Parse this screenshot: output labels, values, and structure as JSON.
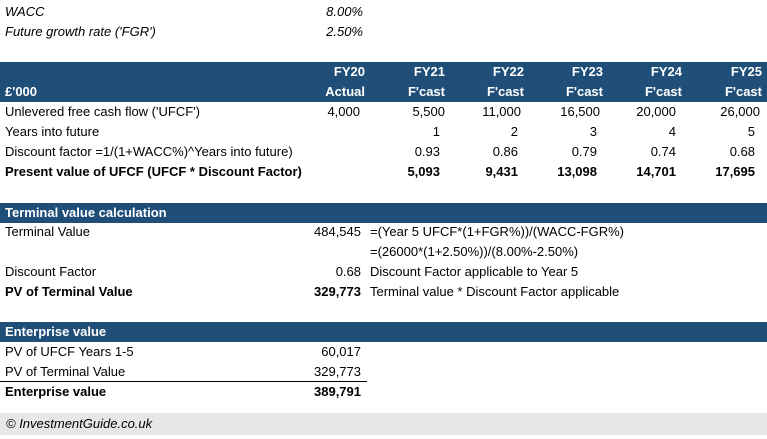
{
  "inputs": {
    "wacc_label": "WACC",
    "wacc_value": "8.00%",
    "fgr_label": "Future growth rate ('FGR')",
    "fgr_value": "2.50%"
  },
  "dcf": {
    "unit_label": "£'000",
    "years": [
      "FY20",
      "FY21",
      "FY22",
      "FY23",
      "FY24",
      "FY25"
    ],
    "year_types": [
      "Actual",
      "F'cast",
      "F'cast",
      "F'cast",
      "F'cast",
      "F'cast"
    ],
    "rows": [
      {
        "label": "Unlevered free cash flow ('UFCF')",
        "values": [
          "4,000",
          "5,500",
          "11,000",
          "16,500",
          "20,000",
          "26,000"
        ]
      },
      {
        "label": "Years into future",
        "values": [
          "",
          "1",
          "2",
          "3",
          "4",
          "5"
        ]
      },
      {
        "label": "Discount factor =1/(1+WACC%)^Years into future)",
        "values": [
          "",
          "0.93",
          "0.86",
          "0.79",
          "0.74",
          "0.68"
        ]
      },
      {
        "label": "Present value of UFCF (UFCF * Discount Factor)",
        "values": [
          "",
          "5,093",
          "9,431",
          "13,098",
          "14,701",
          "17,695"
        ]
      }
    ]
  },
  "terminal": {
    "header": "Terminal value calculation",
    "tv_label": "Terminal Value",
    "tv_value": "484,545",
    "tv_formula_1": "=(Year 5 UFCF*(1+FGR%))/(WACC-FGR%)",
    "tv_formula_2": "=(26000*(1+2.50%))/(8.00%-2.50%)",
    "df_label": "Discount Factor",
    "df_value": "0.68",
    "df_note": "Discount Factor applicable to Year 5",
    "pv_label": "PV of Terminal Value",
    "pv_value": "329,773",
    "pv_note": "Terminal value * Discount Factor applicable"
  },
  "ev": {
    "header": "Enterprise value",
    "pv_ufcf_label": "PV of UFCF Years 1-5",
    "pv_ufcf_value": "60,017",
    "pv_tv_label": "PV of Terminal Value",
    "pv_tv_value": "329,773",
    "ev_label": "Enterprise value",
    "ev_value": "389,791"
  },
  "footer": {
    "copyright": "© InvestmentGuide.co.uk"
  }
}
